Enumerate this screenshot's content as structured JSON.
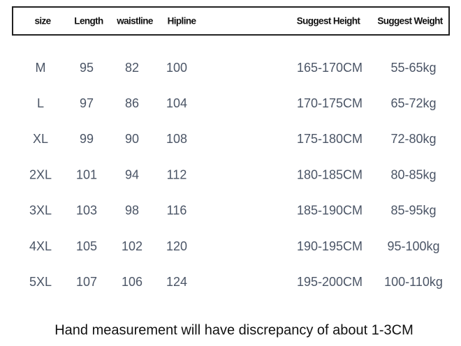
{
  "table": {
    "header": [
      "size",
      "Length",
      "waistline",
      "Hipline",
      "Suggest Height",
      "Suggest Weight"
    ],
    "rows": [
      [
        "M",
        "95",
        "82",
        "100",
        "165-170CM",
        "55-65kg"
      ],
      [
        "L",
        "97",
        "86",
        "104",
        "170-175CM",
        "65-72kg"
      ],
      [
        "XL",
        "99",
        "90",
        "108",
        "175-180CM",
        "72-80kg"
      ],
      [
        "2XL",
        "101",
        "94",
        "112",
        "180-185CM",
        "80-85kg"
      ],
      [
        "3XL",
        "103",
        "98",
        "116",
        "185-190CM",
        "85-95kg"
      ],
      [
        "4XL",
        "105",
        "102",
        "120",
        "190-195CM",
        "95-100kg"
      ],
      [
        "5XL",
        "107",
        "106",
        "124",
        "195-200CM",
        "100-110kg"
      ]
    ]
  },
  "note": "Hand measurement will have discrepancy of about 1-3CM"
}
